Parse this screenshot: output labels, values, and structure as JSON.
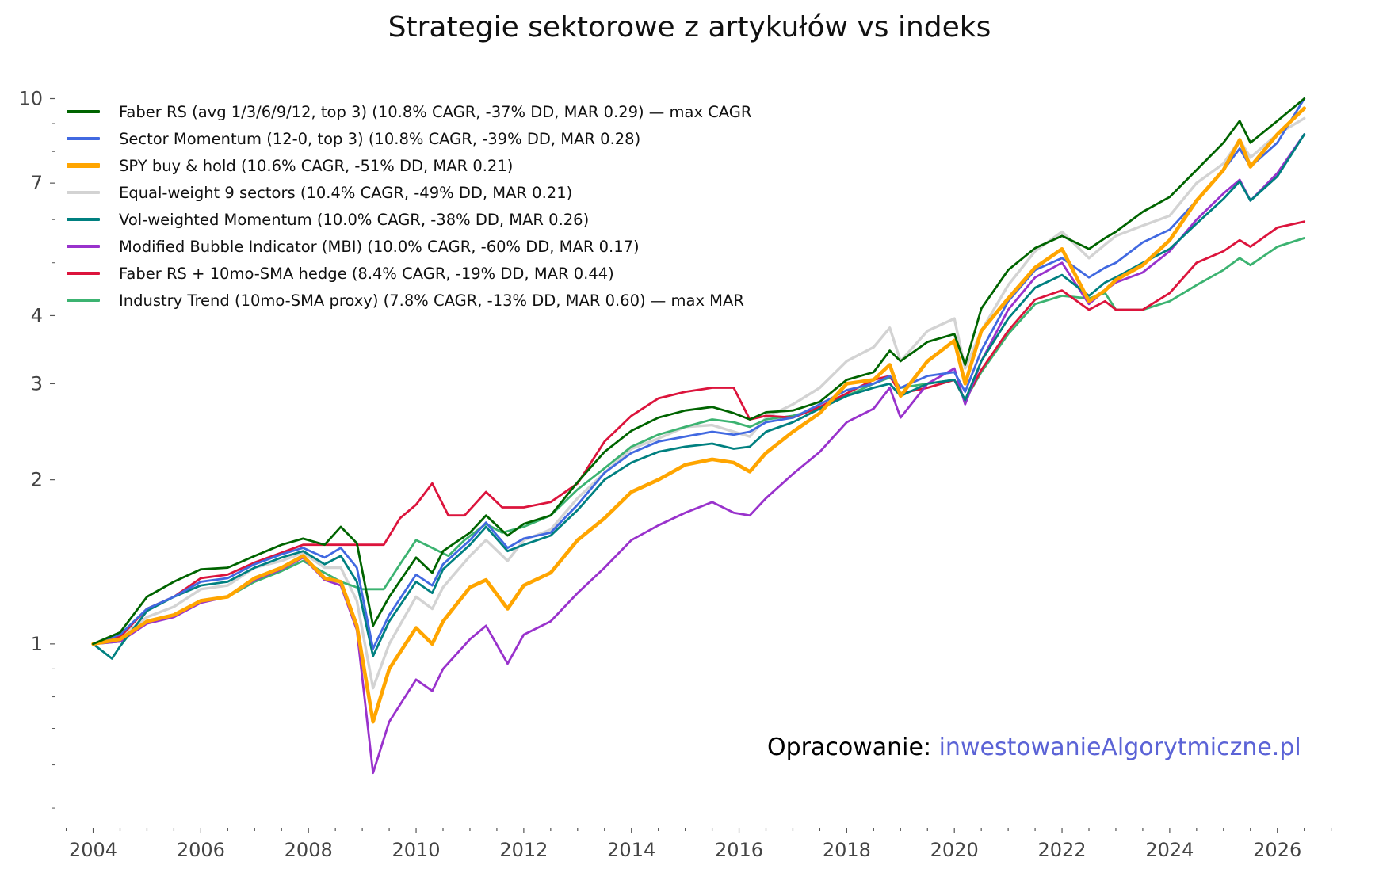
{
  "chart_data": {
    "type": "line",
    "title": "Strategie sektorowe z artykułów vs indeks",
    "xlabel": "",
    "ylabel": "",
    "y_scale": "log",
    "xlim": [
      2003.3,
      2027.3
    ],
    "ylim": [
      0.46,
      12.0
    ],
    "x_ticks": [
      "2004",
      "2006",
      "2008",
      "2010",
      "2012",
      "2014",
      "2016",
      "2018",
      "2020",
      "2022",
      "2024",
      "2026"
    ],
    "y_ticks": [
      "1",
      "2",
      "3",
      "4",
      "7",
      "10"
    ],
    "grid": false,
    "legend_position": "top-left",
    "series": [
      {
        "name": "Faber RS (avg 1/3/6/9/12, top 3)  (10.8% CAGR, -37% DD, MAR 0.29) — max CAGR",
        "color": "#006400",
        "x": [
          2004.0,
          2004.5,
          2005.0,
          2005.5,
          2006.0,
          2006.5,
          2007.0,
          2007.5,
          2007.9,
          2008.3,
          2008.6,
          2008.9,
          2009.2,
          2009.5,
          2010.0,
          2010.3,
          2010.5,
          2011.0,
          2011.3,
          2011.7,
          2012.0,
          2012.5,
          2013.0,
          2013.5,
          2014.0,
          2014.5,
          2015.0,
          2015.5,
          2015.9,
          2016.2,
          2016.5,
          2017.0,
          2017.5,
          2018.0,
          2018.5,
          2018.8,
          2019.0,
          2019.5,
          2020.0,
          2020.2,
          2020.5,
          2021.0,
          2021.5,
          2022.0,
          2022.5,
          2022.8,
          2023.0,
          2023.5,
          2024.0,
          2024.5,
          2025.0,
          2025.3,
          2025.5,
          2026.0,
          2026.5
        ],
        "y": [
          1.0,
          1.05,
          1.22,
          1.3,
          1.37,
          1.38,
          1.45,
          1.52,
          1.56,
          1.52,
          1.64,
          1.53,
          1.08,
          1.22,
          1.44,
          1.35,
          1.48,
          1.6,
          1.72,
          1.58,
          1.66,
          1.72,
          1.98,
          2.25,
          2.46,
          2.6,
          2.68,
          2.72,
          2.65,
          2.58,
          2.66,
          2.68,
          2.78,
          3.05,
          3.15,
          3.45,
          3.3,
          3.58,
          3.7,
          3.25,
          4.12,
          4.85,
          5.32,
          5.6,
          5.3,
          5.55,
          5.7,
          6.2,
          6.6,
          7.4,
          8.3,
          9.1,
          8.3,
          9.1,
          10.0
        ]
      },
      {
        "name": "Sector Momentum (12-0, top 3)  (10.8% CAGR, -39% DD, MAR 0.28)",
        "color": "#4169e1",
        "x": [
          2004.0,
          2004.5,
          2005.0,
          2005.5,
          2006.0,
          2006.5,
          2007.0,
          2007.5,
          2007.9,
          2008.3,
          2008.6,
          2008.9,
          2009.2,
          2009.5,
          2010.0,
          2010.3,
          2010.5,
          2011.0,
          2011.3,
          2011.7,
          2012.0,
          2012.5,
          2013.0,
          2013.5,
          2014.0,
          2014.5,
          2015.0,
          2015.5,
          2015.9,
          2016.2,
          2016.5,
          2017.0,
          2017.5,
          2018.0,
          2018.5,
          2018.8,
          2019.0,
          2019.5,
          2020.0,
          2020.2,
          2020.5,
          2021.0,
          2021.5,
          2022.0,
          2022.5,
          2022.8,
          2023.0,
          2023.5,
          2024.0,
          2024.5,
          2025.0,
          2025.3,
          2025.5,
          2026.0,
          2026.5
        ],
        "y": [
          1.0,
          1.04,
          1.16,
          1.22,
          1.3,
          1.32,
          1.4,
          1.46,
          1.5,
          1.44,
          1.5,
          1.38,
          0.98,
          1.13,
          1.34,
          1.28,
          1.4,
          1.55,
          1.67,
          1.5,
          1.56,
          1.6,
          1.8,
          2.06,
          2.24,
          2.35,
          2.4,
          2.45,
          2.42,
          2.45,
          2.55,
          2.6,
          2.75,
          2.92,
          3.0,
          3.1,
          2.95,
          3.1,
          3.15,
          2.9,
          3.45,
          4.25,
          4.85,
          5.1,
          4.7,
          4.9,
          5.0,
          5.45,
          5.75,
          6.5,
          7.4,
          8.1,
          7.5,
          8.3,
          10.0
        ]
      },
      {
        "name": "SPY buy & hold  (10.6% CAGR, -51% DD, MAR 0.21)",
        "color": "#ffa500",
        "x": [
          2004.0,
          2004.5,
          2005.0,
          2005.5,
          2006.0,
          2006.5,
          2007.0,
          2007.5,
          2007.9,
          2008.3,
          2008.6,
          2008.9,
          2009.2,
          2009.5,
          2010.0,
          2010.3,
          2010.5,
          2011.0,
          2011.3,
          2011.7,
          2012.0,
          2012.5,
          2013.0,
          2013.5,
          2014.0,
          2014.5,
          2015.0,
          2015.5,
          2015.9,
          2016.2,
          2016.5,
          2017.0,
          2017.5,
          2018.0,
          2018.5,
          2018.8,
          2019.0,
          2019.5,
          2020.0,
          2020.2,
          2020.5,
          2021.0,
          2021.5,
          2022.0,
          2022.5,
          2022.8,
          2023.0,
          2023.5,
          2024.0,
          2024.5,
          2025.0,
          2025.3,
          2025.5,
          2026.0,
          2026.5
        ],
        "y": [
          1.0,
          1.02,
          1.1,
          1.13,
          1.2,
          1.22,
          1.32,
          1.38,
          1.45,
          1.32,
          1.3,
          1.08,
          0.72,
          0.9,
          1.07,
          1.0,
          1.1,
          1.27,
          1.31,
          1.16,
          1.28,
          1.35,
          1.55,
          1.7,
          1.9,
          2.0,
          2.13,
          2.18,
          2.15,
          2.07,
          2.24,
          2.45,
          2.65,
          3.0,
          3.05,
          3.25,
          2.85,
          3.3,
          3.6,
          3.0,
          3.75,
          4.3,
          4.9,
          5.3,
          4.25,
          4.45,
          4.65,
          4.95,
          5.5,
          6.5,
          7.4,
          8.4,
          7.5,
          8.6,
          9.6
        ]
      },
      {
        "name": "Equal-weight 9 sectors  (10.4% CAGR, -49% DD, MAR 0.21)",
        "color": "#d3d3d3",
        "x": [
          2004.0,
          2004.5,
          2005.0,
          2005.5,
          2006.0,
          2006.5,
          2007.0,
          2007.5,
          2007.9,
          2008.3,
          2008.6,
          2008.9,
          2009.2,
          2009.5,
          2010.0,
          2010.3,
          2010.5,
          2011.0,
          2011.3,
          2011.7,
          2012.0,
          2012.5,
          2013.0,
          2013.5,
          2014.0,
          2014.5,
          2015.0,
          2015.5,
          2015.9,
          2016.2,
          2016.5,
          2017.0,
          2017.5,
          2018.0,
          2018.5,
          2018.8,
          2019.0,
          2019.5,
          2020.0,
          2020.2,
          2020.5,
          2021.0,
          2021.5,
          2022.0,
          2022.5,
          2022.8,
          2023.0,
          2023.5,
          2024.0,
          2024.5,
          2025.0,
          2025.3,
          2025.5,
          2026.0,
          2026.5
        ],
        "y": [
          1.0,
          1.03,
          1.12,
          1.17,
          1.26,
          1.28,
          1.38,
          1.42,
          1.47,
          1.38,
          1.38,
          1.2,
          0.83,
          1.0,
          1.22,
          1.16,
          1.27,
          1.45,
          1.55,
          1.42,
          1.55,
          1.62,
          1.85,
          2.06,
          2.28,
          2.38,
          2.5,
          2.52,
          2.45,
          2.4,
          2.6,
          2.75,
          2.95,
          3.3,
          3.5,
          3.8,
          3.3,
          3.75,
          3.95,
          3.2,
          3.75,
          4.55,
          5.25,
          5.7,
          5.1,
          5.4,
          5.6,
          5.85,
          6.1,
          7.0,
          7.6,
          8.4,
          7.8,
          8.6,
          9.2
        ]
      },
      {
        "name": "Vol-weighted Momentum  (10.0% CAGR, -38% DD, MAR 0.26)",
        "color": "#008080",
        "x": [
          2004.0,
          2004.35,
          2004.5,
          2005.0,
          2005.5,
          2006.0,
          2006.5,
          2007.0,
          2007.5,
          2007.9,
          2008.3,
          2008.6,
          2008.9,
          2009.2,
          2009.5,
          2010.0,
          2010.3,
          2010.5,
          2011.0,
          2011.3,
          2011.7,
          2012.0,
          2012.5,
          2013.0,
          2013.5,
          2014.0,
          2014.5,
          2015.0,
          2015.5,
          2015.9,
          2016.2,
          2016.5,
          2017.0,
          2017.5,
          2018.0,
          2018.5,
          2018.8,
          2019.0,
          2019.5,
          2020.0,
          2020.2,
          2020.5,
          2021.0,
          2021.5,
          2022.0,
          2022.5,
          2022.8,
          2023.0,
          2023.5,
          2024.0,
          2024.5,
          2025.0,
          2025.3,
          2025.5,
          2026.0,
          2026.5
        ],
        "y": [
          1.0,
          0.94,
          0.99,
          1.15,
          1.22,
          1.28,
          1.3,
          1.38,
          1.44,
          1.48,
          1.4,
          1.45,
          1.3,
          0.95,
          1.1,
          1.3,
          1.24,
          1.37,
          1.52,
          1.64,
          1.48,
          1.52,
          1.58,
          1.76,
          2.0,
          2.15,
          2.25,
          2.3,
          2.33,
          2.28,
          2.3,
          2.45,
          2.55,
          2.7,
          2.85,
          2.95,
          3.0,
          2.85,
          3.0,
          3.05,
          2.8,
          3.3,
          3.95,
          4.5,
          4.75,
          4.35,
          4.6,
          4.7,
          5.0,
          5.3,
          5.9,
          6.55,
          7.05,
          6.5,
          7.2,
          8.6
        ]
      },
      {
        "name": "Modified Bubble Indicator (MBI)  (10.0% CAGR, -60% DD, MAR 0.17)",
        "color": "#9932cc",
        "x": [
          2004.0,
          2004.5,
          2005.0,
          2005.5,
          2006.0,
          2006.5,
          2007.0,
          2007.5,
          2007.9,
          2008.3,
          2008.6,
          2008.9,
          2009.2,
          2009.5,
          2010.0,
          2010.3,
          2010.5,
          2011.0,
          2011.3,
          2011.7,
          2012.0,
          2012.5,
          2013.0,
          2013.5,
          2014.0,
          2014.5,
          2015.0,
          2015.5,
          2015.9,
          2016.2,
          2016.5,
          2017.0,
          2017.5,
          2018.0,
          2018.5,
          2018.8,
          2019.0,
          2019.5,
          2020.0,
          2020.2,
          2020.5,
          2021.0,
          2021.5,
          2022.0,
          2022.5,
          2022.8,
          2023.0,
          2023.5,
          2024.0,
          2024.5,
          2025.0,
          2025.3,
          2025.5,
          2026.0,
          2026.5
        ],
        "y": [
          1.0,
          1.01,
          1.09,
          1.12,
          1.19,
          1.22,
          1.31,
          1.37,
          1.44,
          1.31,
          1.28,
          1.06,
          0.58,
          0.72,
          0.86,
          0.82,
          0.9,
          1.02,
          1.08,
          0.92,
          1.04,
          1.1,
          1.24,
          1.38,
          1.55,
          1.65,
          1.74,
          1.82,
          1.74,
          1.72,
          1.85,
          2.05,
          2.25,
          2.55,
          2.7,
          2.95,
          2.6,
          3.0,
          3.2,
          2.75,
          3.3,
          4.1,
          4.7,
          5.0,
          4.2,
          4.45,
          4.6,
          4.8,
          5.25,
          6.0,
          6.7,
          7.1,
          6.5,
          7.3,
          8.6
        ]
      },
      {
        "name": "Faber RS + 10mo-SMA hedge  (8.4% CAGR, -19% DD, MAR 0.44)",
        "color": "#dc143c",
        "x": [
          2004.0,
          2004.5,
          2005.0,
          2005.5,
          2006.0,
          2006.5,
          2007.0,
          2007.5,
          2007.9,
          2008.3,
          2008.6,
          2009.0,
          2009.4,
          2009.7,
          2010.0,
          2010.3,
          2010.6,
          2010.9,
          2011.3,
          2011.6,
          2012.0,
          2012.5,
          2013.0,
          2013.5,
          2014.0,
          2014.5,
          2015.0,
          2015.5,
          2015.9,
          2016.2,
          2016.5,
          2017.0,
          2017.5,
          2018.0,
          2018.5,
          2018.8,
          2019.0,
          2019.5,
          2020.0,
          2020.2,
          2020.5,
          2021.0,
          2021.5,
          2022.0,
          2022.5,
          2022.8,
          2023.0,
          2023.5,
          2024.0,
          2024.5,
          2025.0,
          2025.3,
          2025.5,
          2026.0,
          2026.5
        ],
        "y": [
          1.0,
          1.03,
          1.16,
          1.22,
          1.32,
          1.34,
          1.41,
          1.47,
          1.52,
          1.52,
          1.52,
          1.52,
          1.52,
          1.7,
          1.8,
          1.97,
          1.72,
          1.72,
          1.9,
          1.78,
          1.78,
          1.82,
          1.97,
          2.35,
          2.62,
          2.82,
          2.9,
          2.95,
          2.95,
          2.58,
          2.62,
          2.6,
          2.72,
          2.88,
          3.05,
          3.1,
          2.88,
          2.95,
          3.05,
          2.8,
          3.18,
          3.75,
          4.28,
          4.45,
          4.1,
          4.25,
          4.1,
          4.1,
          4.4,
          5.0,
          5.25,
          5.5,
          5.35,
          5.8,
          5.95
        ]
      },
      {
        "name": "Industry Trend (10mo-SMA proxy)  (7.8% CAGR, -13% DD, MAR 0.60) — max MAR",
        "color": "#3cb371",
        "x": [
          2004.0,
          2004.5,
          2005.0,
          2005.5,
          2006.0,
          2006.5,
          2007.0,
          2007.5,
          2007.9,
          2008.3,
          2008.6,
          2009.0,
          2009.4,
          2009.7,
          2010.0,
          2010.3,
          2010.6,
          2010.9,
          2011.3,
          2011.6,
          2012.0,
          2012.5,
          2013.0,
          2013.5,
          2014.0,
          2014.5,
          2015.0,
          2015.5,
          2015.9,
          2016.2,
          2016.5,
          2017.0,
          2017.5,
          2018.0,
          2018.5,
          2018.8,
          2019.0,
          2019.5,
          2020.0,
          2020.2,
          2020.5,
          2021.0,
          2021.5,
          2022.0,
          2022.5,
          2022.8,
          2023.0,
          2023.5,
          2024.0,
          2024.5,
          2025.0,
          2025.3,
          2025.5,
          2026.0,
          2026.5
        ],
        "y": [
          1.0,
          1.01,
          1.1,
          1.13,
          1.2,
          1.22,
          1.3,
          1.36,
          1.42,
          1.35,
          1.3,
          1.26,
          1.26,
          1.4,
          1.55,
          1.5,
          1.45,
          1.55,
          1.66,
          1.6,
          1.64,
          1.72,
          1.92,
          2.1,
          2.3,
          2.42,
          2.5,
          2.58,
          2.55,
          2.5,
          2.58,
          2.62,
          2.7,
          2.85,
          3.0,
          3.08,
          2.95,
          3.0,
          3.05,
          2.8,
          3.15,
          3.7,
          4.2,
          4.35,
          4.3,
          4.4,
          4.1,
          4.1,
          4.25,
          4.55,
          4.85,
          5.1,
          4.95,
          5.35,
          5.55
        ]
      }
    ]
  },
  "source": {
    "prefix": "Opracowanie: ",
    "link": "inwestowanieAlgorytmiczne.pl"
  }
}
